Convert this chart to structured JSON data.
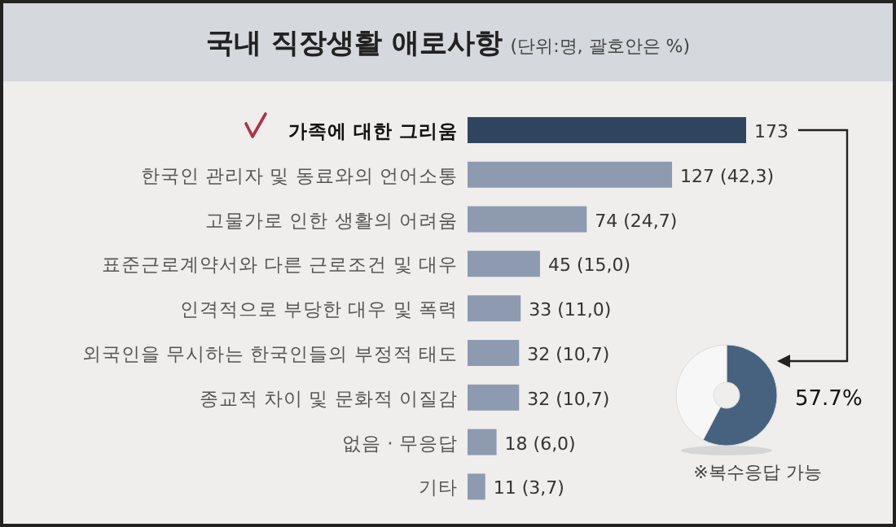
{
  "chart_data": [
    {
      "type": "bar",
      "orientation": "horizontal",
      "title": "국내 직장생활 애로사항",
      "subtitle": "(단위:명, 괄호안은 %)",
      "categories": [
        "가족에 대한 그리움",
        "한국인 관리자 및 동료와의 언어소통",
        "고물가로 인한 생활의 어려움",
        "표준근로계약서와 다른 근로조건 및 대우",
        "인격적으로 부당한 대우 및 폭력",
        "외국인을 무시하는 한국인들의 부정적 태도",
        "종교적 차이 및 문화적 이질감",
        "없음 · 무응답",
        "기타"
      ],
      "values": [
        173,
        127,
        74,
        45,
        33,
        32,
        32,
        18,
        11
      ],
      "colors": [
        "#2f455f",
        "#8d9ab0",
        "#8d9ab0",
        "#8d9ab0",
        "#8d9ab0",
        "#8d9ab0",
        "#8d9ab0",
        "#8d9ab0",
        "#8d9ab0"
      ],
      "value_labels": [
        "173",
        "127 (42,3)",
        "74 (24,7)",
        "45 (15,0)",
        "33 (11,0)",
        "32 (10,7)",
        "32 (10,7)",
        "18 (6,0)",
        "11 (3,7)"
      ]
    },
    {
      "type": "donut",
      "categories": [
        null,
        null
      ],
      "values": [
        57.7,
        42.3
      ],
      "colors": [
        "#47627f",
        "#f7f7f7"
      ],
      "value_labels": [
        "57.7%",
        null
      ],
      "annotations": [
        "※복수응답 가능"
      ]
    }
  ]
}
